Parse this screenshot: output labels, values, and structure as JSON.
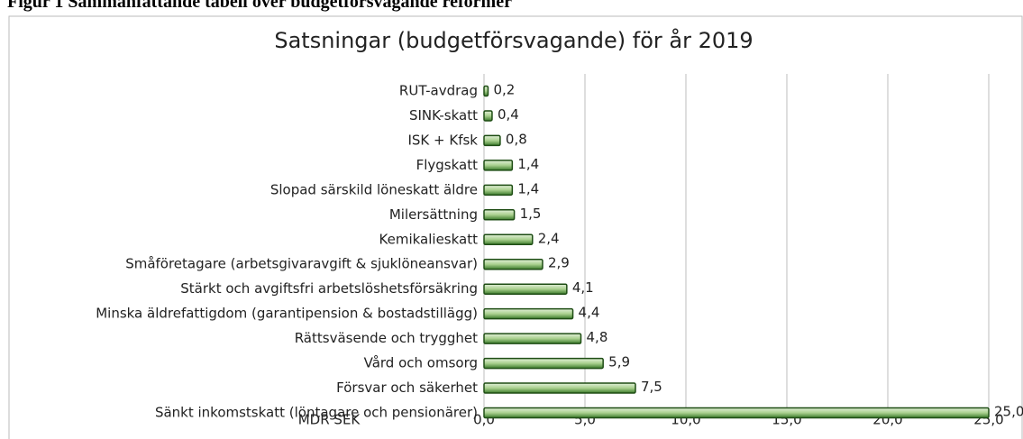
{
  "caption": "Figur 1 Sammanfattande tabell över budgetförsvagande reformer",
  "chart_data": {
    "type": "hbar",
    "title": "Satsningar (budgetförsvagande)  för år 2019",
    "x_label": "MDR SEK",
    "categories": [
      "RUT-avdrag",
      "SINK-skatt",
      "ISK + Kfsk",
      "Flygskatt",
      "Slopad särskild löneskatt äldre",
      "Milersättning",
      "Kemikalieskatt",
      "Småföretagare (arbetsgivaravgift & sjuklöneansvar)",
      "Stärkt och avgiftsfri arbetslöshetsförsäkring",
      "Minska äldrefattigdom (garantipension & bostadstillägg)",
      "Rättsväsende och trygghet",
      "Vård och omsorg",
      "Försvar och säkerhet",
      "Sänkt inkomstskatt (löntagare och pensionärer)"
    ],
    "values": [
      0.2,
      0.4,
      0.8,
      1.4,
      1.4,
      1.5,
      2.4,
      2.9,
      4.1,
      4.4,
      4.8,
      5.9,
      7.5,
      25.0
    ],
    "value_labels": [
      "0,2",
      "0,4",
      "0,8",
      "1,4",
      "1,4",
      "1,5",
      "2,4",
      "2,9",
      "4,1",
      "4,4",
      "4,8",
      "5,9",
      "7,5",
      "25,0"
    ],
    "color": "#a9d08e",
    "xlim": [
      0,
      25
    ],
    "xticks": [
      {
        "value": 0,
        "label": "0,0"
      },
      {
        "value": 5,
        "label": "5,0"
      },
      {
        "value": 10,
        "label": "10,0"
      },
      {
        "value": 15,
        "label": "15,0"
      },
      {
        "value": 20,
        "label": "20,0"
      },
      {
        "value": 25,
        "label": "25,0"
      }
    ],
    "grid": true
  }
}
